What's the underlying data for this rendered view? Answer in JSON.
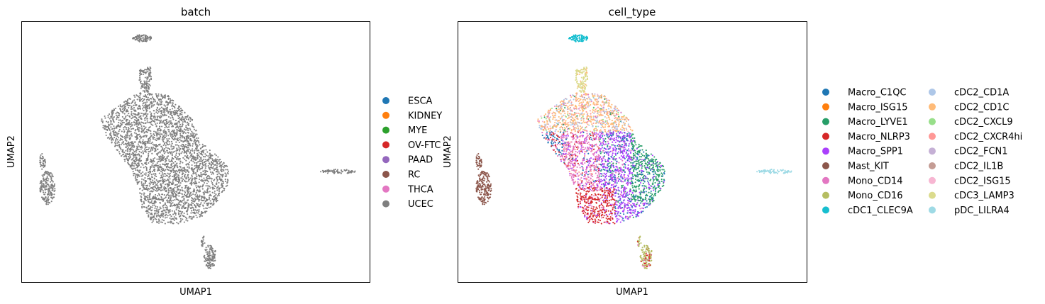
{
  "chart_data": [
    {
      "type": "scatter",
      "title": "batch",
      "xlabel": "UMAP1",
      "ylabel": "UMAP2",
      "grid": false,
      "legend_position": "right",
      "legend": [
        {
          "name": "ESCA",
          "color": "#1f77b4"
        },
        {
          "name": "KIDNEY",
          "color": "#ff7f0e"
        },
        {
          "name": "MYE",
          "color": "#2ca02c"
        },
        {
          "name": "OV-FTC",
          "color": "#d62728"
        },
        {
          "name": "PAAD",
          "color": "#9467bd"
        },
        {
          "name": "RC",
          "color": "#8c564b"
        },
        {
          "name": "THCA",
          "color": "#e377c2"
        },
        {
          "name": "UCEC",
          "color": "#7f7f7f"
        }
      ],
      "point_color": "#7f7f7f"
    },
    {
      "type": "scatter",
      "title": "cell_type",
      "xlabel": "UMAP1",
      "ylabel": "UMAP2",
      "grid": false,
      "legend_position": "right, two columns",
      "legend": [
        {
          "name": "Macro_C1QC",
          "color": "#1f77b4"
        },
        {
          "name": "Macro_ISG15",
          "color": "#ff7f0e"
        },
        {
          "name": "Macro_LYVE1",
          "color": "#279e68"
        },
        {
          "name": "Macro_NLRP3",
          "color": "#d62728"
        },
        {
          "name": "Macro_SPP1",
          "color": "#aa40fc"
        },
        {
          "name": "Mast_KIT",
          "color": "#8c564b"
        },
        {
          "name": "Mono_CD14",
          "color": "#e377c2"
        },
        {
          "name": "Mono_CD16",
          "color": "#b5bd61"
        },
        {
          "name": "cDC1_CLEC9A",
          "color": "#17becf"
        },
        {
          "name": "cDC2_CD1A",
          "color": "#aec7e8"
        },
        {
          "name": "cDC2_CD1C",
          "color": "#ffbb78"
        },
        {
          "name": "cDC2_CXCL9",
          "color": "#98df8a"
        },
        {
          "name": "cDC2_CXCR4hi",
          "color": "#ff9896"
        },
        {
          "name": "cDC2_FCN1",
          "color": "#c5b0d5"
        },
        {
          "name": "cDC2_IL1B",
          "color": "#c49c94"
        },
        {
          "name": "cDC2_ISG15",
          "color": "#f7b6d2"
        },
        {
          "name": "cDC3_LAMP3",
          "color": "#dbdb8d"
        },
        {
          "name": "pDC_LILRA4",
          "color": "#9edae5"
        }
      ]
    }
  ]
}
